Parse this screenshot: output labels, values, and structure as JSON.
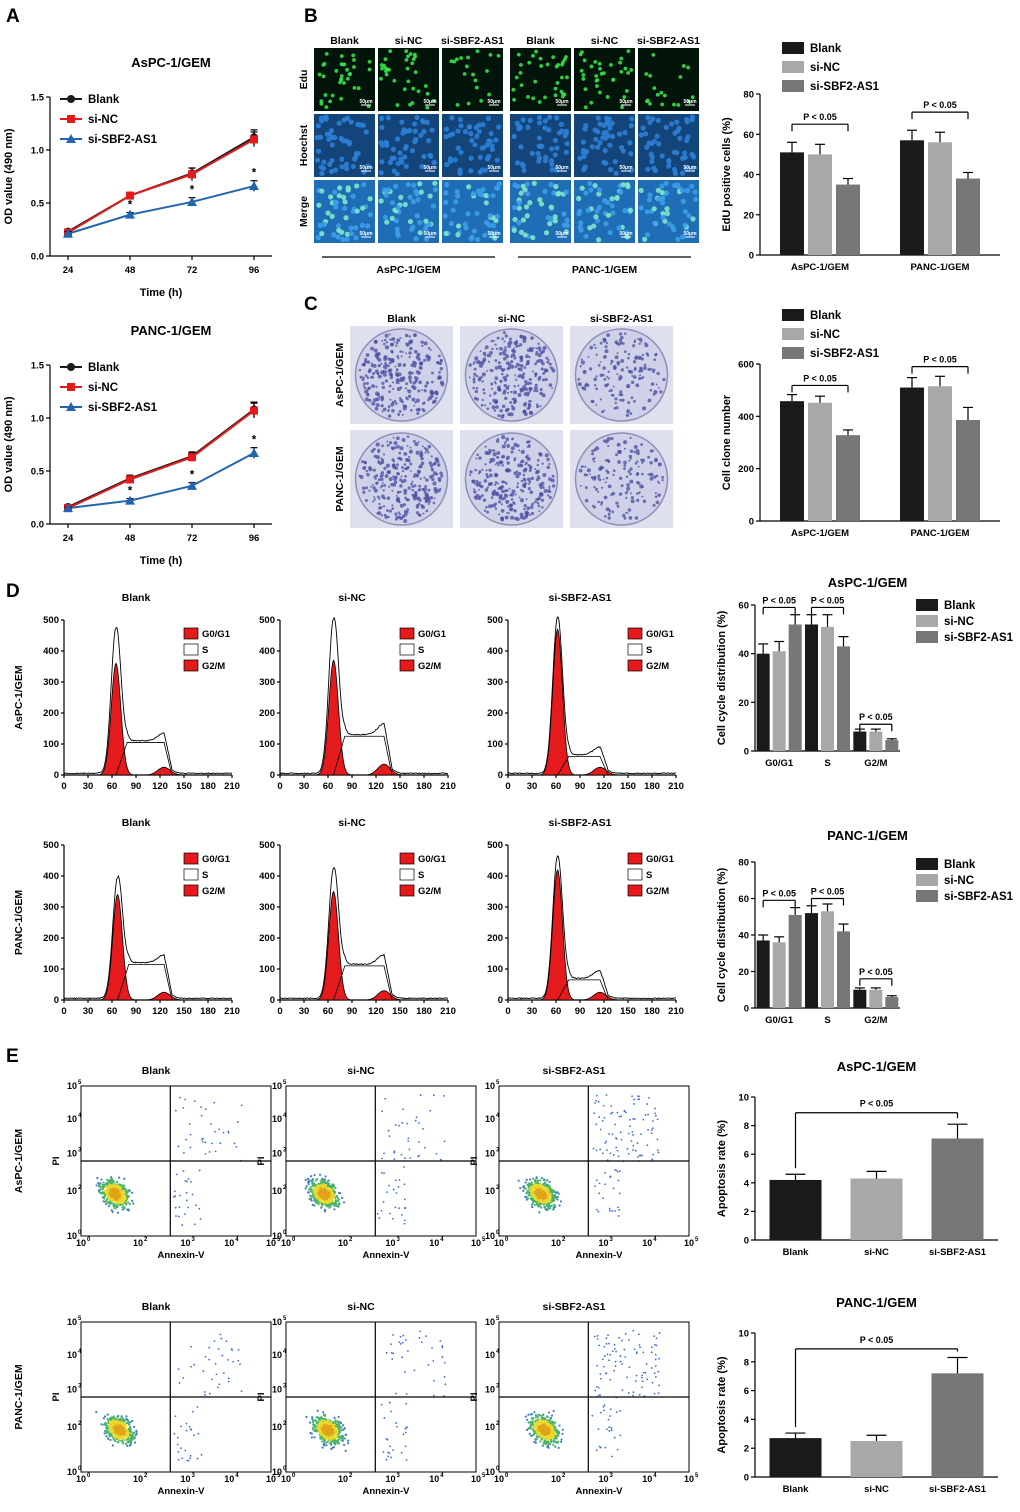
{
  "panel_labels": {
    "A": "A",
    "B": "B",
    "C": "C",
    "D": "D",
    "E": "E"
  },
  "colors": {
    "blank": "#1a1a1a",
    "sinc_line": "#e41a1c",
    "si_line": "#2166ac",
    "sinc_bar": "#a8a8a8",
    "si_bar": "#777777",
    "peak_fill": "#e41a1c",
    "edu_bg": "#03150a",
    "hoechst_bg": "#14457a",
    "merge_bg": "#1f6eb5",
    "dish_bg": "#cfd1e8",
    "colony": "#4a4aa0"
  },
  "chart_data": [
    {
      "id": "A1",
      "type": "line",
      "title": "AsPC-1/GEM",
      "xlabel": "Time (h)",
      "ylabel": "OD value (490 nm)",
      "x": [
        24,
        48,
        72,
        96
      ],
      "ylim": [
        0,
        1.5
      ],
      "yticks": [
        "0.0",
        "0.5",
        "1.0",
        "1.5"
      ],
      "series": [
        {
          "name": "Blank",
          "values": [
            0.23,
            0.57,
            0.78,
            1.12
          ],
          "err": [
            0.02,
            0.02,
            0.05,
            0.07
          ]
        },
        {
          "name": "si-NC",
          "values": [
            0.22,
            0.57,
            0.77,
            1.1
          ],
          "err": [
            0.02,
            0.02,
            0.06,
            0.07
          ]
        },
        {
          "name": "si-SBF2-AS1",
          "values": [
            0.21,
            0.39,
            0.51,
            0.66
          ],
          "err": [
            0.02,
            0.02,
            0.04,
            0.05
          ]
        }
      ],
      "annotations": [
        "*",
        "*",
        "*"
      ]
    },
    {
      "id": "A2",
      "type": "line",
      "title": "PANC-1/GEM",
      "xlabel": "Time (h)",
      "ylabel": "OD value (490 nm)",
      "x": [
        24,
        48,
        72,
        96
      ],
      "ylim": [
        0,
        1.5
      ],
      "yticks": [
        "0.0",
        "0.5",
        "1.0",
        "1.5"
      ],
      "series": [
        {
          "name": "Blank",
          "values": [
            0.16,
            0.43,
            0.64,
            1.08
          ],
          "err": [
            0.02,
            0.03,
            0.04,
            0.07
          ]
        },
        {
          "name": "si-NC",
          "values": [
            0.15,
            0.42,
            0.63,
            1.07
          ],
          "err": [
            0.02,
            0.03,
            0.04,
            0.07
          ]
        },
        {
          "name": "si-SBF2-AS1",
          "values": [
            0.15,
            0.22,
            0.36,
            0.67
          ],
          "err": [
            0.01,
            0.02,
            0.03,
            0.05
          ]
        }
      ],
      "annotations": [
        "*",
        "*",
        "*"
      ]
    },
    {
      "id": "B",
      "type": "bar",
      "ylabel": "EdU positive cells (%)",
      "categories": [
        "AsPC-1/GEM",
        "PANC-1/GEM"
      ],
      "ylim": [
        0,
        80
      ],
      "yticks": [
        "0",
        "20",
        "40",
        "60",
        "80"
      ],
      "series": [
        {
          "name": "Blank",
          "values": [
            51,
            57
          ],
          "err": [
            5,
            5
          ]
        },
        {
          "name": "si-NC",
          "values": [
            50,
            56
          ],
          "err": [
            5,
            5
          ]
        },
        {
          "name": "si-SBF2-AS1",
          "values": [
            35,
            38
          ],
          "err": [
            3,
            3
          ]
        }
      ],
      "sig": [
        {
          "group": 0,
          "from": 0,
          "to": 2,
          "at": 65,
          "label": "P < 0.05"
        },
        {
          "group": 1,
          "from": 0,
          "to": 2,
          "at": 71,
          "label": "P < 0.05"
        }
      ]
    },
    {
      "id": "C",
      "type": "bar",
      "ylabel": "Cell clone number",
      "categories": [
        "AsPC-1/GEM",
        "PANC-1/GEM"
      ],
      "ylim": [
        0,
        600
      ],
      "yticks": [
        "0",
        "200",
        "400",
        "600"
      ],
      "series": [
        {
          "name": "Blank",
          "values": [
            458,
            510
          ],
          "err": [
            25,
            38
          ]
        },
        {
          "name": "si-NC",
          "values": [
            452,
            515
          ],
          "err": [
            25,
            38
          ]
        },
        {
          "name": "si-SBF2-AS1",
          "values": [
            328,
            386
          ],
          "err": [
            20,
            48
          ]
        }
      ],
      "sig": [
        {
          "group": 0,
          "from": 0,
          "to": 2,
          "at": 518,
          "label": "P < 0.05"
        },
        {
          "group": 1,
          "from": 0,
          "to": 2,
          "at": 590,
          "label": "P < 0.05"
        }
      ]
    },
    {
      "id": "D1",
      "type": "bar",
      "title": "AsPC-1/GEM",
      "ylabel": "Cell cycle distribution (%)",
      "categories": [
        "G0/G1",
        "S",
        "G2/M"
      ],
      "ylim": [
        0,
        60
      ],
      "yticks": [
        "0",
        "20",
        "40",
        "60"
      ],
      "series": [
        {
          "name": "Blank",
          "values": [
            40,
            52,
            8
          ],
          "err": [
            4,
            4,
            1
          ]
        },
        {
          "name": "si-NC",
          "values": [
            41,
            51,
            8
          ],
          "err": [
            4,
            5,
            1
          ]
        },
        {
          "name": "si-SBF2-AS1",
          "values": [
            52,
            43,
            4.5
          ],
          "err": [
            4,
            4,
            0.5
          ]
        }
      ],
      "sig": [
        {
          "group": 0,
          "from": 0,
          "to": 2,
          "at": 59,
          "label": "P < 0.05"
        },
        {
          "group": 1,
          "from": 0,
          "to": 2,
          "at": 59,
          "label": "P < 0.05"
        },
        {
          "group": 2,
          "from": 0,
          "to": 2,
          "at": 11,
          "label": "P < 0.05"
        }
      ]
    },
    {
      "id": "D2",
      "type": "bar",
      "title": "PANC-1/GEM",
      "ylabel": "Cell cycle distribution (%)",
      "categories": [
        "G0/G1",
        "S",
        "G2/M"
      ],
      "ylim": [
        0,
        80
      ],
      "yticks": [
        "0",
        "20",
        "40",
        "60",
        "80"
      ],
      "series": [
        {
          "name": "Blank",
          "values": [
            37,
            52,
            10
          ],
          "err": [
            3,
            4,
            1
          ]
        },
        {
          "name": "si-NC",
          "values": [
            36,
            53,
            10
          ],
          "err": [
            3,
            4,
            1
          ]
        },
        {
          "name": "si-SBF2-AS1",
          "values": [
            51,
            42,
            6
          ],
          "err": [
            4,
            4,
            0.7
          ]
        }
      ],
      "sig": [
        {
          "group": 0,
          "from": 0,
          "to": 2,
          "at": 59,
          "label": "P < 0.05"
        },
        {
          "group": 1,
          "from": 0,
          "to": 2,
          "at": 60,
          "label": "P < 0.05"
        },
        {
          "group": 2,
          "from": 0,
          "to": 2,
          "at": 16,
          "label": "P < 0.05"
        }
      ]
    },
    {
      "id": "E1",
      "type": "bar",
      "title": "AsPC-1/GEM",
      "ylabel": "Apoptosis rate (%)",
      "categories": [
        "Blank",
        "si-NC",
        "si-SBF2-AS1"
      ],
      "ylim": [
        0,
        10
      ],
      "yticks": [
        "0",
        "2",
        "4",
        "6",
        "8",
        "10"
      ],
      "values": [
        4.2,
        4.3,
        7.1
      ],
      "err": [
        0.4,
        0.5,
        1.0
      ],
      "sig": [
        {
          "from": 0,
          "to": 2,
          "at": 8.9,
          "label": "P < 0.05"
        }
      ]
    },
    {
      "id": "E2",
      "type": "bar",
      "title": "PANC-1/GEM",
      "ylabel": "Apoptosis rate (%)",
      "categories": [
        "Blank",
        "si-NC",
        "si-SBF2-AS1"
      ],
      "ylim": [
        0,
        10
      ],
      "yticks": [
        "0",
        "2",
        "4",
        "6",
        "8",
        "10"
      ],
      "values": [
        2.7,
        2.5,
        7.2
      ],
      "err": [
        0.35,
        0.4,
        1.1
      ],
      "sig": [
        {
          "from": 0,
          "to": 2,
          "at": 8.9,
          "label": "P < 0.05"
        }
      ]
    }
  ],
  "images": {
    "B": {
      "groups": [
        "AsPC-1/GEM",
        "PANC-1/GEM"
      ],
      "columns": [
        "Blank",
        "si-NC",
        "si-SBF2-AS1"
      ],
      "rows": [
        "Edu",
        "Hoechst",
        "Merge"
      ],
      "scale": "50μm"
    },
    "C": {
      "columns": [
        "Blank",
        "si-NC",
        "si-SBF2-AS1"
      ],
      "rows": [
        "AsPC-1/GEM",
        "PANC-1/GEM"
      ]
    }
  },
  "flow_cycle": {
    "titles": [
      "Blank",
      "si-NC",
      "si-SBF2-AS1"
    ],
    "rows": [
      "AsPC-1/GEM",
      "PANC-1/GEM"
    ],
    "legend": [
      "G0/G1",
      "S",
      "G2/M"
    ],
    "xticks": [
      "0",
      "30",
      "60",
      "90",
      "120",
      "150",
      "180",
      "210"
    ],
    "yticks": [
      "0",
      "100",
      "200",
      "300",
      "400",
      "500"
    ],
    "peaks": [
      [
        {
          "g1": 360,
          "g1x": 65,
          "s": 105,
          "g2": 25,
          "g2x": 125,
          "top": 470
        },
        {
          "g1": 370,
          "g1x": 67,
          "s": 125,
          "g2": 35,
          "g2x": 130,
          "top": 500
        },
        {
          "g1": 470,
          "g1x": 62,
          "s": 60,
          "g2": 25,
          "g2x": 115,
          "top": 505
        }
      ],
      [
        {
          "g1": 340,
          "g1x": 67,
          "s": 115,
          "g2": 25,
          "g2x": 125,
          "top": 390
        },
        {
          "g1": 350,
          "g1x": 67,
          "s": 110,
          "g2": 30,
          "g2x": 130,
          "top": 420
        },
        {
          "g1": 420,
          "g1x": 62,
          "s": 65,
          "g2": 25,
          "g2x": 115,
          "top": 460
        }
      ]
    ]
  },
  "flow_apop": {
    "titles": [
      "Blank",
      "si-NC",
      "si-SBF2-AS1"
    ],
    "rows": [
      "AsPC-1/GEM",
      "PANC-1/GEM"
    ],
    "xlabel": "Annexin-V",
    "ylabel": "PI",
    "decades": [
      "0",
      "2",
      "3",
      "4",
      "5"
    ]
  }
}
